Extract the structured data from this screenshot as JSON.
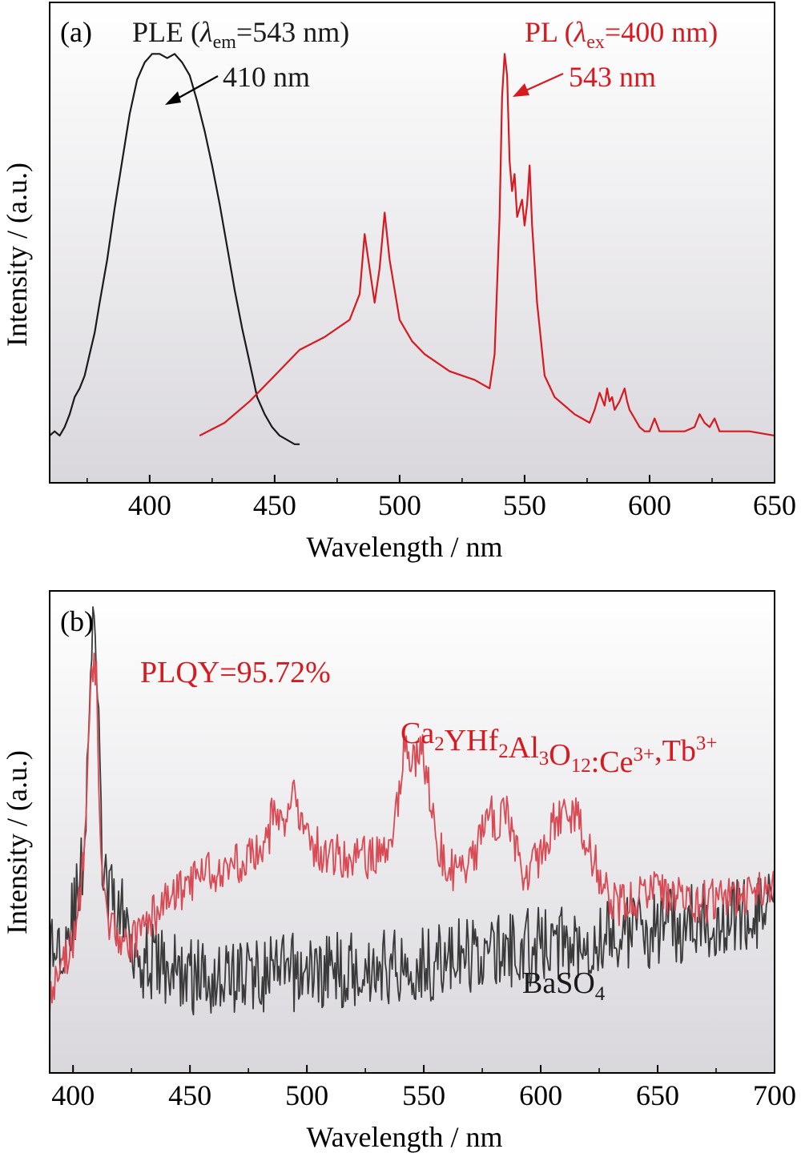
{
  "chart_data": [
    {
      "panel": "(a)",
      "type": "line",
      "xlabel": "Wavelength / nm",
      "ylabel": "Intensity / (a.u.)",
      "xlim": [
        360,
        650
      ],
      "ylim": [
        0,
        1.12
      ],
      "xticks": [
        400,
        450,
        500,
        550,
        600,
        650
      ],
      "grid": false,
      "legend_labels": [
        {
          "text": "PLE (",
          "sym": "λ",
          "sub": "em",
          "rest": "=543 nm)",
          "color": "#1a1a1a"
        },
        {
          "text": "PL (",
          "sym": "λ",
          "sub": "ex",
          "rest": "=400 nm)",
          "color": "#d71920"
        }
      ],
      "annotations": [
        {
          "text": "410 nm",
          "x": 407,
          "y": 1.0,
          "color": "#1a1a1a"
        },
        {
          "text": "543 nm",
          "x": 543,
          "y": 1.0,
          "color": "#d71920"
        }
      ],
      "series": [
        {
          "name": "PLE",
          "color": "#1a1a1a",
          "x": [
            360,
            362,
            364,
            366,
            368,
            370,
            372,
            374,
            376,
            378,
            380,
            383,
            386,
            389,
            392,
            395,
            398,
            401,
            404,
            407,
            410,
            413,
            416,
            419,
            422,
            425,
            428,
            431,
            434,
            437,
            440,
            443,
            446,
            449,
            452,
            455,
            458,
            460
          ],
          "y": [
            0.11,
            0.12,
            0.11,
            0.13,
            0.16,
            0.2,
            0.22,
            0.25,
            0.3,
            0.35,
            0.42,
            0.52,
            0.64,
            0.75,
            0.86,
            0.94,
            0.98,
            1.0,
            1.0,
            0.99,
            1.0,
            0.98,
            0.95,
            0.89,
            0.82,
            0.74,
            0.65,
            0.55,
            0.45,
            0.36,
            0.28,
            0.2,
            0.16,
            0.13,
            0.11,
            0.1,
            0.09,
            0.09
          ]
        },
        {
          "name": "PL",
          "color": "#d71920",
          "x": [
            420,
            430,
            440,
            450,
            460,
            470,
            480,
            484,
            486,
            488,
            490,
            492,
            494,
            496,
            500,
            505,
            510,
            520,
            530,
            536,
            538,
            540,
            541,
            542,
            543,
            544,
            545,
            546,
            547,
            548,
            549,
            550,
            551,
            552,
            553,
            555,
            558,
            562,
            570,
            576,
            578,
            580,
            582,
            583,
            584,
            585,
            586,
            588,
            590,
            591,
            592,
            594,
            596,
            598,
            600,
            602,
            604,
            608,
            614,
            618,
            620,
            622,
            624,
            626,
            628,
            632,
            640,
            650
          ],
          "y": [
            0.11,
            0.14,
            0.19,
            0.25,
            0.31,
            0.34,
            0.38,
            0.44,
            0.58,
            0.5,
            0.42,
            0.5,
            0.63,
            0.52,
            0.38,
            0.33,
            0.3,
            0.26,
            0.24,
            0.22,
            0.3,
            0.62,
            0.9,
            1.0,
            0.95,
            0.75,
            0.68,
            0.72,
            0.62,
            0.64,
            0.66,
            0.6,
            0.65,
            0.74,
            0.6,
            0.42,
            0.25,
            0.2,
            0.16,
            0.14,
            0.17,
            0.21,
            0.18,
            0.22,
            0.19,
            0.2,
            0.17,
            0.19,
            0.22,
            0.19,
            0.17,
            0.15,
            0.13,
            0.12,
            0.12,
            0.15,
            0.12,
            0.12,
            0.12,
            0.13,
            0.16,
            0.14,
            0.13,
            0.15,
            0.12,
            0.12,
            0.12,
            0.11
          ]
        }
      ]
    },
    {
      "panel": "(b)",
      "type": "line",
      "xlabel": "Wavelength / nm",
      "ylabel": "Intensity / (a.u.)",
      "xlim": [
        390,
        700
      ],
      "ylim": [
        0,
        1.1
      ],
      "xticks": [
        400,
        450,
        500,
        550,
        600,
        650,
        700
      ],
      "grid": false,
      "annotations": [
        {
          "text": "PLQY=95.72%",
          "color": "#d71920"
        },
        {
          "text": "Ca₂YHf₂Al₃O₁₂:Ce³⁺,Tb³⁺",
          "color": "#d71920"
        },
        {
          "text": "BaSO₄",
          "color": "#1a1a1a"
        }
      ],
      "formula_parts": [
        {
          "t": "Ca",
          "b": "2"
        },
        {
          "t": "YHf",
          "b": "2"
        },
        {
          "t": "Al",
          "b": "3"
        },
        {
          "t": "O",
          "b": "12"
        },
        {
          "t": ":Ce",
          "p": "3+"
        },
        {
          "t": ",Tb",
          "p": "3+"
        }
      ],
      "baso4_parts": [
        {
          "t": "BaSO",
          "b": "4"
        }
      ],
      "series": [
        {
          "name": "BaSO₄",
          "color": "#3a3a3a",
          "noise": 0.09,
          "x": [
            390,
            395,
            400,
            403,
            405,
            406,
            407,
            408,
            409,
            410,
            411,
            412,
            413,
            415,
            418,
            422,
            426,
            430,
            440,
            450,
            500,
            550,
            600,
            650,
            700
          ],
          "y": [
            0.27,
            0.3,
            0.36,
            0.42,
            0.55,
            0.7,
            0.85,
            0.97,
            1.0,
            0.96,
            0.75,
            0.55,
            0.45,
            0.4,
            0.38,
            0.35,
            0.3,
            0.26,
            0.24,
            0.22,
            0.23,
            0.25,
            0.29,
            0.33,
            0.37
          ]
        },
        {
          "name": "Ca₂YHf₂Al₃O₁₂:Ce³⁺,Tb³⁺",
          "color": "#d84a54",
          "noise": 0.05,
          "x": [
            390,
            395,
            400,
            403,
            405,
            406,
            407,
            408,
            409,
            410,
            411,
            412,
            413,
            415,
            418,
            422,
            426,
            430,
            440,
            450,
            460,
            470,
            480,
            484,
            486,
            488,
            490,
            492,
            494,
            496,
            500,
            505,
            510,
            520,
            530,
            535,
            538,
            540,
            542,
            544,
            546,
            548,
            550,
            552,
            554,
            556,
            560,
            565,
            570,
            575,
            578,
            582,
            585,
            588,
            590,
            592,
            595,
            600,
            605,
            610,
            615,
            620,
            625,
            628,
            630,
            635,
            640,
            645,
            650,
            660,
            670,
            680,
            690,
            700
          ],
          "y": [
            0.18,
            0.23,
            0.31,
            0.39,
            0.52,
            0.66,
            0.8,
            0.9,
            0.94,
            0.9,
            0.7,
            0.5,
            0.4,
            0.34,
            0.31,
            0.3,
            0.3,
            0.33,
            0.39,
            0.43,
            0.46,
            0.48,
            0.51,
            0.55,
            0.61,
            0.58,
            0.55,
            0.6,
            0.64,
            0.59,
            0.53,
            0.51,
            0.5,
            0.49,
            0.49,
            0.5,
            0.58,
            0.68,
            0.78,
            0.72,
            0.7,
            0.74,
            0.72,
            0.66,
            0.6,
            0.52,
            0.47,
            0.46,
            0.48,
            0.54,
            0.59,
            0.57,
            0.6,
            0.56,
            0.5,
            0.46,
            0.45,
            0.5,
            0.57,
            0.6,
            0.59,
            0.53,
            0.45,
            0.41,
            0.4,
            0.38,
            0.39,
            0.41,
            0.41,
            0.4,
            0.39,
            0.4,
            0.41,
            0.42
          ]
        }
      ]
    }
  ]
}
